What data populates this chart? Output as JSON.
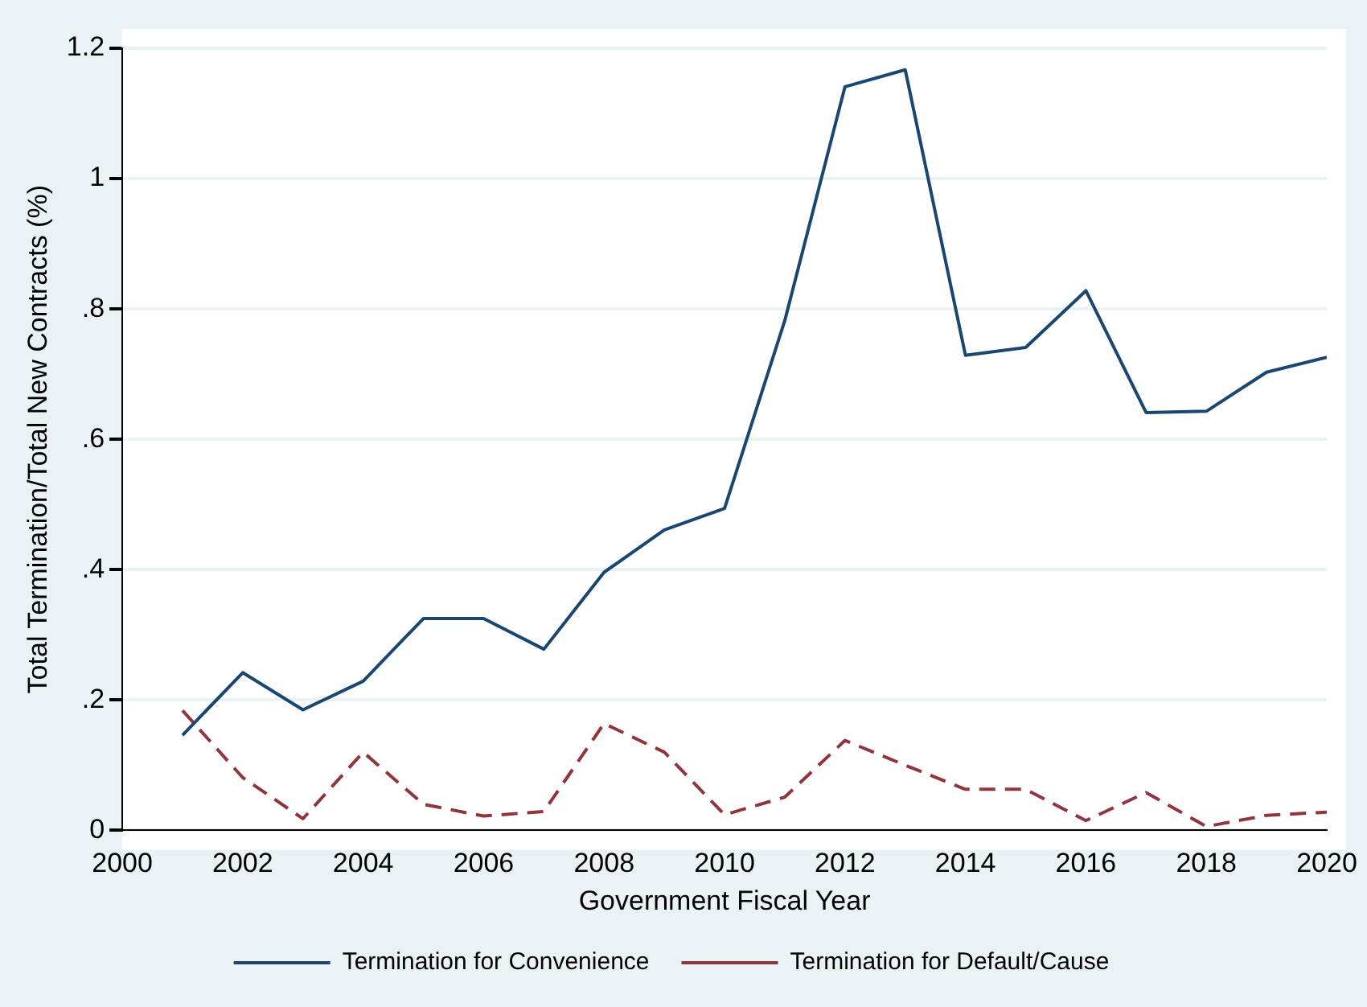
{
  "chart_data": {
    "type": "line",
    "xlabel": "Government Fiscal Year",
    "ylabel": "Total Termination/Total New Contracts (%)",
    "x": [
      2001,
      2002,
      2003,
      2004,
      2005,
      2006,
      2007,
      2008,
      2009,
      2010,
      2011,
      2012,
      2013,
      2014,
      2015,
      2016,
      2017,
      2018,
      2019,
      2020
    ],
    "series": [
      {
        "name": "Termination for Convenience",
        "color": "#1a476f",
        "line_style": "solid",
        "values": [
          0.146,
          0.242,
          0.185,
          0.229,
          0.325,
          0.325,
          0.278,
          0.396,
          0.461,
          0.494,
          0.782,
          1.141,
          1.167,
          0.729,
          0.741,
          0.828,
          0.641,
          0.643,
          0.703,
          0.726
        ]
      },
      {
        "name": "Termination for Default/Cause",
        "color": "#90353b",
        "line_style": "dashed",
        "values": [
          0.184,
          0.081,
          0.018,
          0.12,
          0.04,
          0.022,
          0.029,
          0.164,
          0.12,
          0.024,
          0.051,
          0.138,
          0.1,
          0.063,
          0.063,
          0.015,
          0.058,
          0.006,
          0.023,
          0.028
        ]
      }
    ],
    "xlim": [
      2000,
      2020
    ],
    "xticks": [
      2000,
      2002,
      2004,
      2006,
      2008,
      2010,
      2012,
      2014,
      2016,
      2018,
      2020
    ],
    "ylim": [
      0,
      1.2
    ],
    "yticks": [
      0,
      {
        "value": 0.2,
        "label": ".2"
      },
      {
        "value": 0.4,
        "label": ".4"
      },
      {
        "value": 0.6,
        "label": ".6"
      },
      {
        "value": 0.8,
        "label": ".8"
      },
      1,
      {
        "value": 1.2,
        "label": "1.2"
      }
    ],
    "grid": "y",
    "legend": "bottom",
    "marker": "none"
  }
}
